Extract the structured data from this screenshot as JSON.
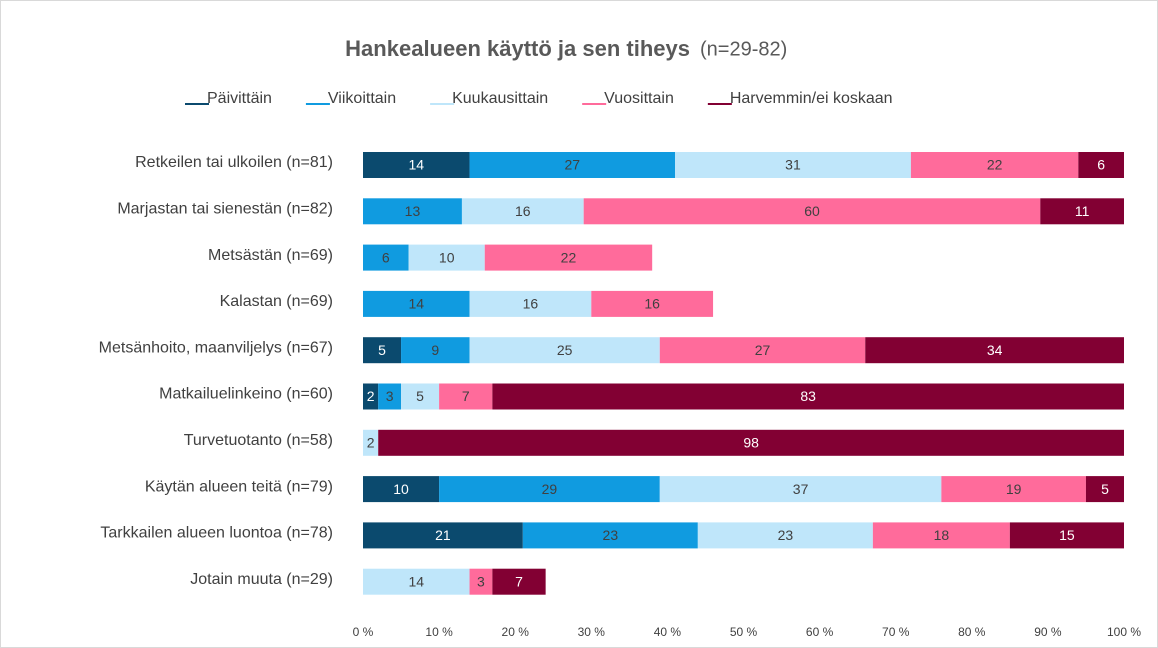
{
  "chart_data": {
    "type": "stacked-bar-horizontal",
    "title": "Hankealueen käyttö ja sen tiheys",
    "subtitle": "(n=29-82)",
    "categories": [
      "Retkeilen tai ulkoilen (n=81)",
      "Marjastan tai sienestän (n=82)",
      "Metsästän (n=69)",
      "Kalastan (n=69)",
      "Metsänhoito, maanviljelys (n=67)",
      "Matkailuelinkeino (n=60)",
      "Turvetuotanto (n=58)",
      "Käytän alueen teitä (n=79)",
      "Tarkkailen alueen luontoa (n=78)",
      "Jotain muuta (n=29)"
    ],
    "series": [
      {
        "name": "Päivittäin",
        "color": "#0b4a6e",
        "values": [
          14,
          null,
          null,
          null,
          5,
          2,
          null,
          10,
          21,
          null
        ]
      },
      {
        "name": "Viikoittain",
        "color": "#109be0",
        "values": [
          27,
          13,
          6,
          14,
          9,
          3,
          null,
          29,
          23,
          null
        ]
      },
      {
        "name": "Kuukausittain",
        "color": "#bfe6fa",
        "values": [
          31,
          16,
          10,
          16,
          25,
          5,
          2,
          37,
          23,
          14
        ]
      },
      {
        "name": "Vuosittain",
        "color": "#ff6b9b",
        "values": [
          22,
          60,
          22,
          16,
          27,
          7,
          null,
          19,
          18,
          3
        ]
      },
      {
        "name": "Harvemmin/ei koskaan",
        "color": "#820033",
        "values": [
          6,
          11,
          null,
          null,
          34,
          83,
          98,
          5,
          15,
          7
        ]
      }
    ],
    "xlim": [
      0,
      100
    ],
    "xticks": [
      {
        "value": 0,
        "label": "0 %"
      },
      {
        "value": 10,
        "label": "10 %"
      },
      {
        "value": 20,
        "label": "20 %"
      },
      {
        "value": 30,
        "label": "30 %"
      },
      {
        "value": 40,
        "label": "40 %"
      },
      {
        "value": 50,
        "label": "50 %"
      },
      {
        "value": 60,
        "label": "60 %"
      },
      {
        "value": 70,
        "label": "70 %"
      },
      {
        "value": 80,
        "label": "80 %"
      },
      {
        "value": 90,
        "label": "90 %"
      },
      {
        "value": 100,
        "label": "100 %"
      }
    ],
    "legend": "top"
  }
}
